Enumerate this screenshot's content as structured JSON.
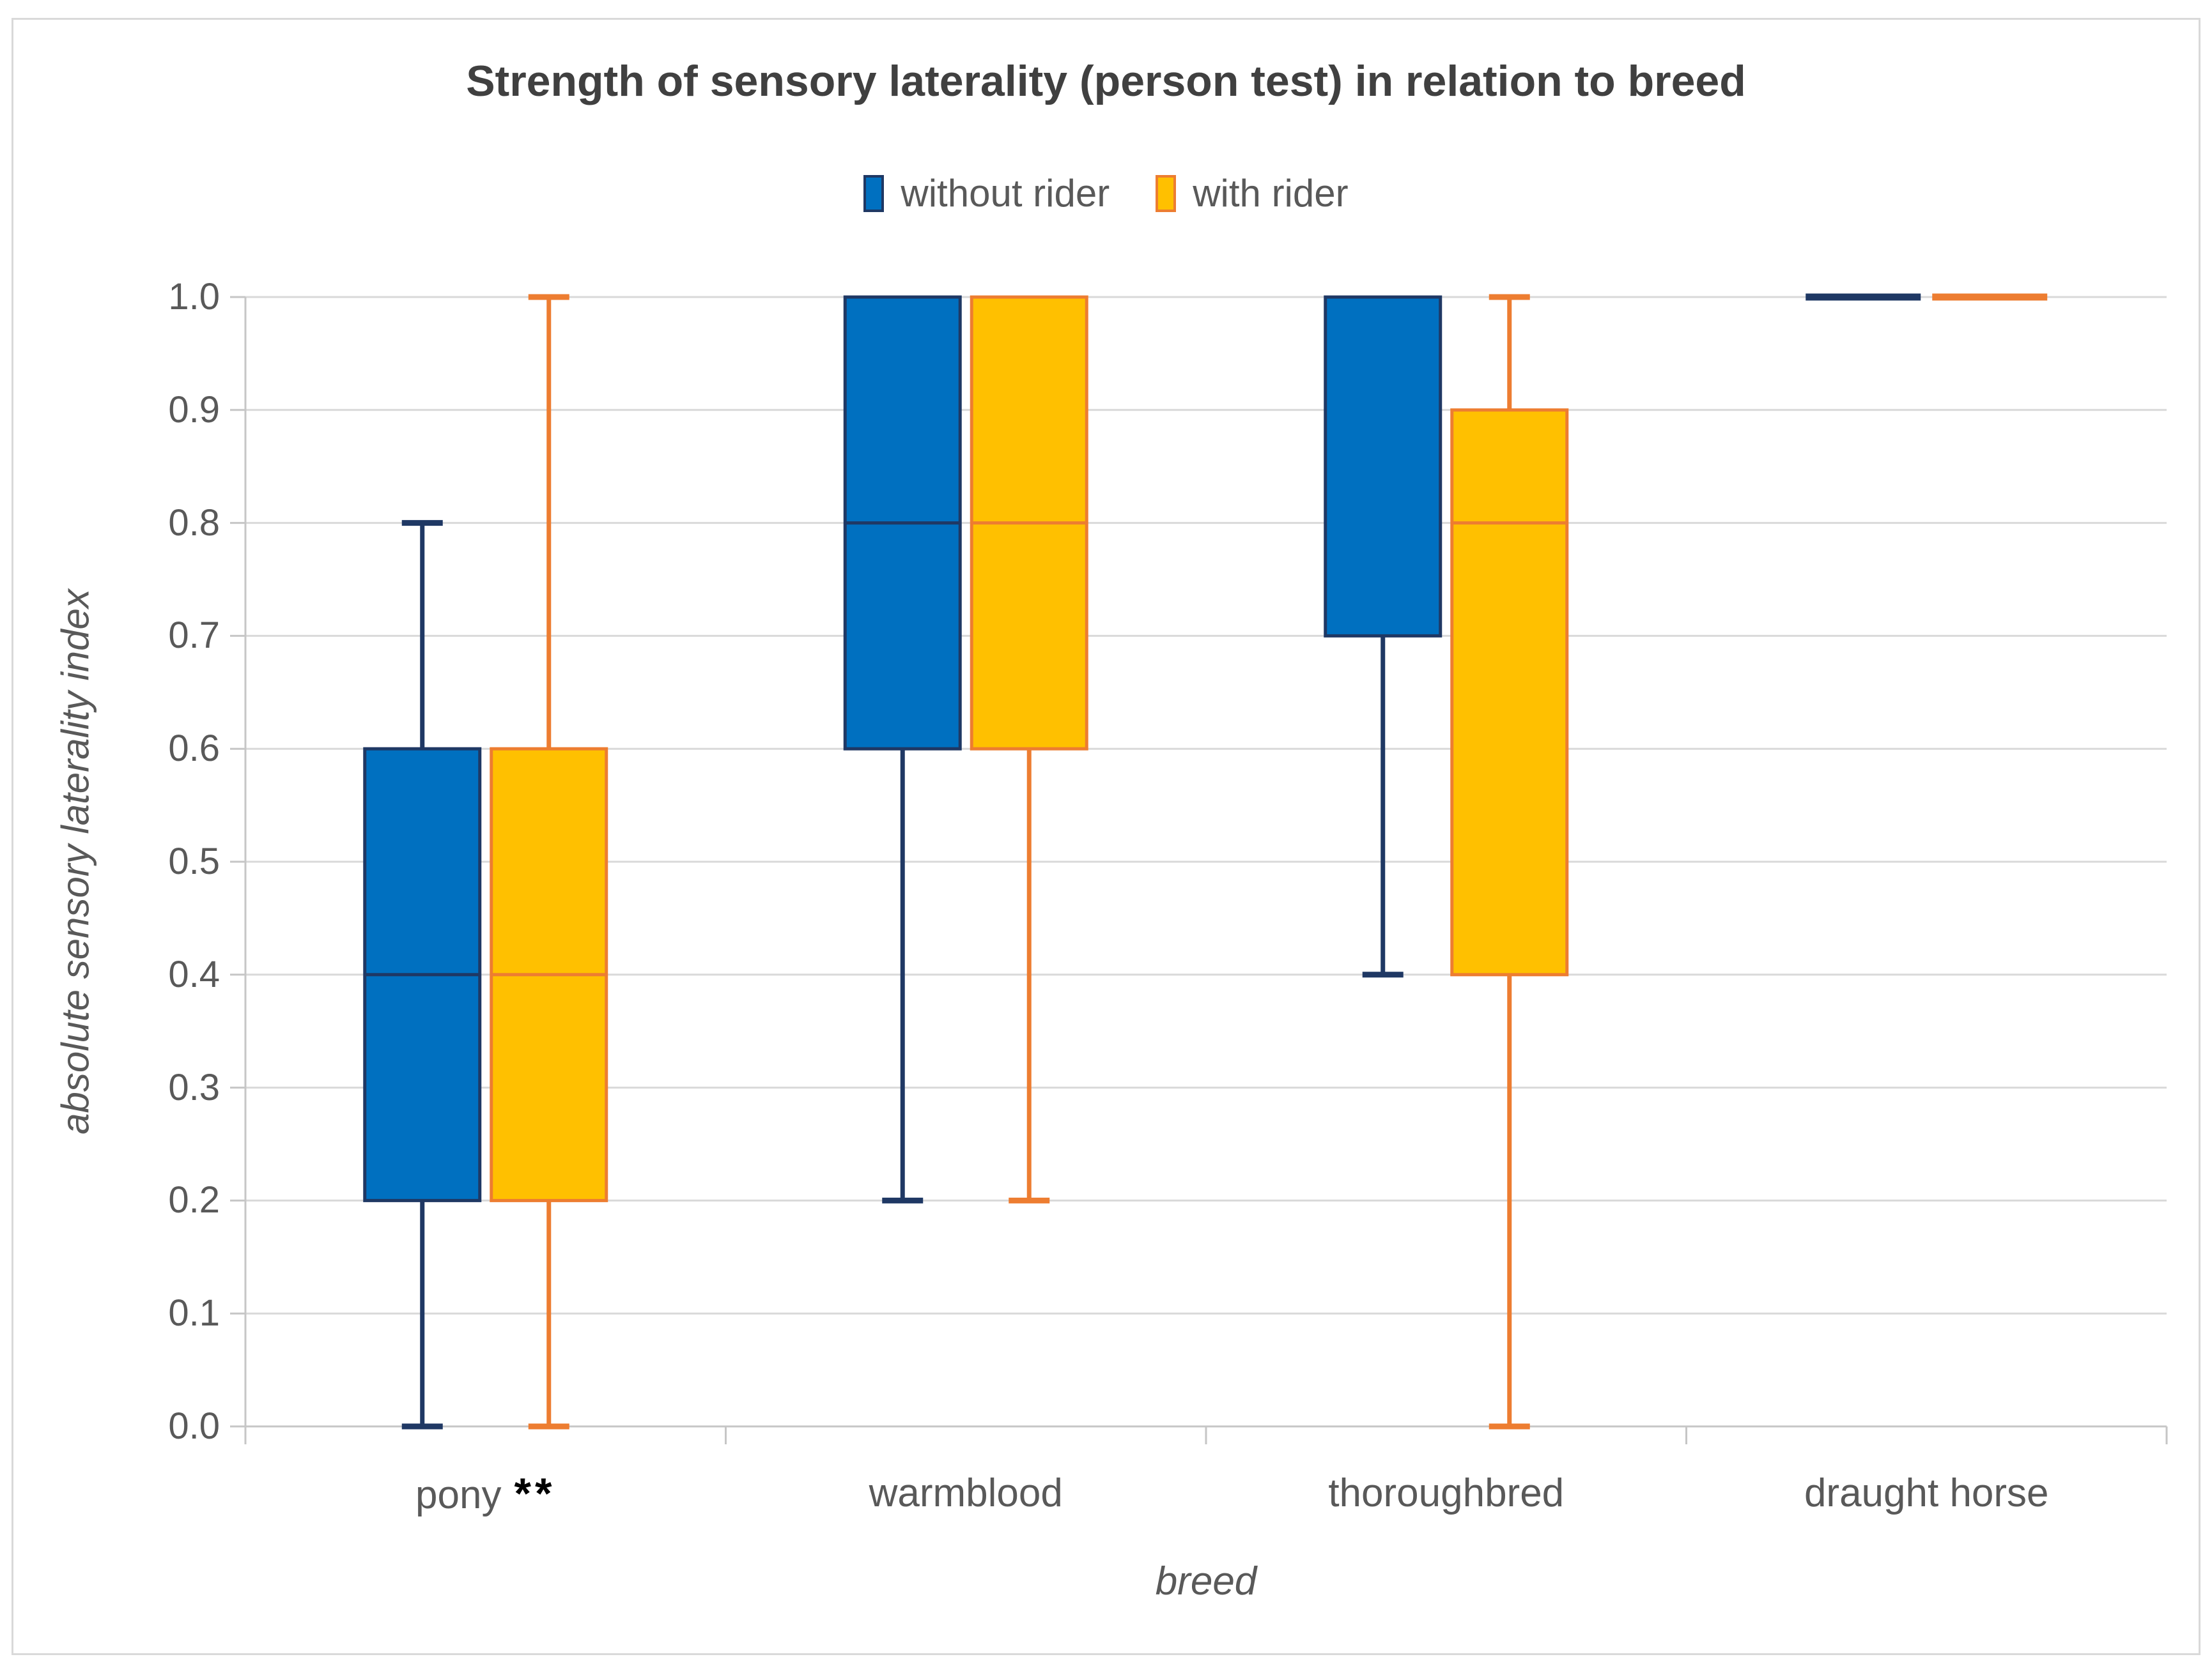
{
  "title": "Strength of sensory laterality (person test) in relation to breed",
  "legend": [
    {
      "label": "without rider",
      "fill": "#0070C0",
      "stroke": "#1F3864"
    },
    {
      "label": "with rider",
      "fill": "#FFC000",
      "stroke": "#ED7D31"
    }
  ],
  "y_axis": {
    "title": "absolute sensory laterality index",
    "ticks": [
      "1.0",
      "0.9",
      "0.8",
      "0.7",
      "0.6",
      "0.5",
      "0.4",
      "0.3",
      "0.2",
      "0.1",
      "0.0"
    ]
  },
  "x_axis": {
    "title": "breed",
    "categories": [
      {
        "label": "pony",
        "annotation": "**"
      },
      {
        "label": "warmblood",
        "annotation": ""
      },
      {
        "label": "thoroughbred",
        "annotation": ""
      },
      {
        "label": "draught horse",
        "annotation": ""
      }
    ]
  },
  "chart_data": {
    "type": "boxplot",
    "title": "Strength of sensory laterality (person test) in relation to breed",
    "xlabel": "breed",
    "ylabel": "absolute sensory laterality index",
    "ylim": [
      0.0,
      1.0
    ],
    "ytick_step": 0.1,
    "grid": true,
    "legend_position": "top",
    "categories": [
      "pony",
      "warmblood",
      "thoroughbred",
      "draught horse"
    ],
    "significance": [
      "**",
      "",
      "",
      ""
    ],
    "series": [
      {
        "name": "without rider",
        "fill": "#0070C0",
        "stroke": "#1F3864",
        "boxes": [
          {
            "whisker_low": 0.0,
            "q1": 0.2,
            "median": 0.4,
            "q3": 0.6,
            "whisker_high": 0.8
          },
          {
            "whisker_low": 0.2,
            "q1": 0.6,
            "median": 0.8,
            "q3": 1.0,
            "whisker_high": 1.0
          },
          {
            "whisker_low": 0.4,
            "q1": 0.7,
            "median": 1.0,
            "q3": 1.0,
            "whisker_high": 1.0
          },
          {
            "whisker_low": 1.0,
            "q1": 1.0,
            "median": 1.0,
            "q3": 1.0,
            "whisker_high": 1.0
          }
        ]
      },
      {
        "name": "with rider",
        "fill": "#FFC000",
        "stroke": "#ED7D31",
        "boxes": [
          {
            "whisker_low": 0.0,
            "q1": 0.2,
            "median": 0.4,
            "q3": 0.6,
            "whisker_high": 1.0
          },
          {
            "whisker_low": 0.2,
            "q1": 0.6,
            "median": 0.8,
            "q3": 1.0,
            "whisker_high": 1.0
          },
          {
            "whisker_low": 0.0,
            "q1": 0.4,
            "median": 0.8,
            "q3": 0.9,
            "whisker_high": 1.0
          },
          {
            "whisker_low": 1.0,
            "q1": 1.0,
            "median": 1.0,
            "q3": 1.0,
            "whisker_high": 1.0
          }
        ]
      }
    ],
    "colors": {
      "gridline": "#D9D9D9",
      "axis": "#C6C6C6",
      "title_text": "#404040",
      "label_text": "#595959",
      "significance_text": "#000000"
    }
  }
}
